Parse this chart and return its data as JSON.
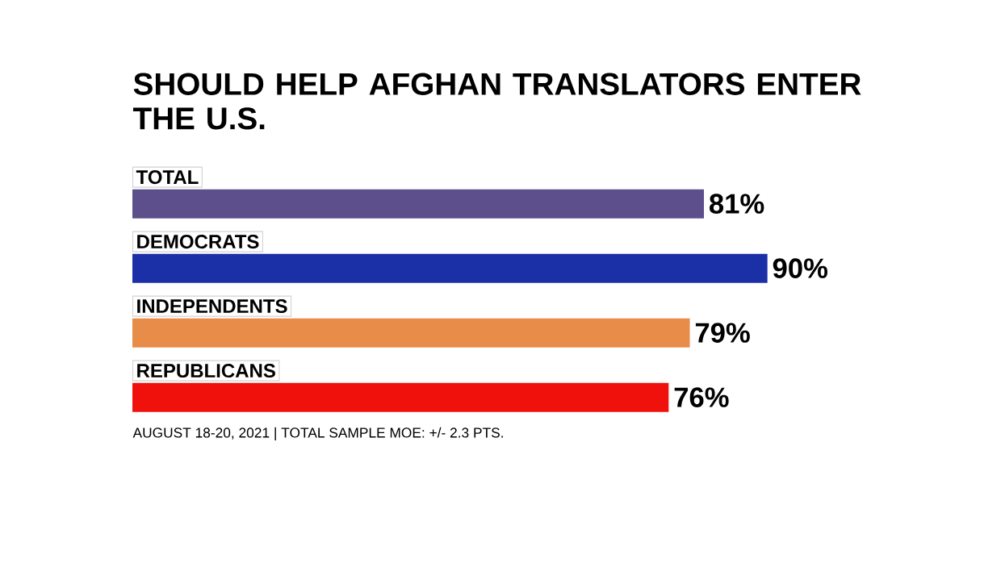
{
  "chart_data": {
    "type": "bar",
    "orientation": "horizontal",
    "title": "SHOULD HELP AFGHAN TRANSLATORS ENTER THE U.S.",
    "categories": [
      "TOTAL",
      "DEMOCRATS",
      "INDEPENDENTS",
      "REPUBLICANS"
    ],
    "values": [
      81,
      90,
      79,
      76
    ],
    "value_labels": [
      "81%",
      "90%",
      "79%",
      "76%"
    ],
    "colors": [
      "#5c4f8c",
      "#1b2fa6",
      "#e88c4a",
      "#f0100c"
    ],
    "annotations": [
      "AUGUST 18-20, 2021 | TOTAL SAMPLE MOE: +/- 2.3 PTS."
    ]
  }
}
